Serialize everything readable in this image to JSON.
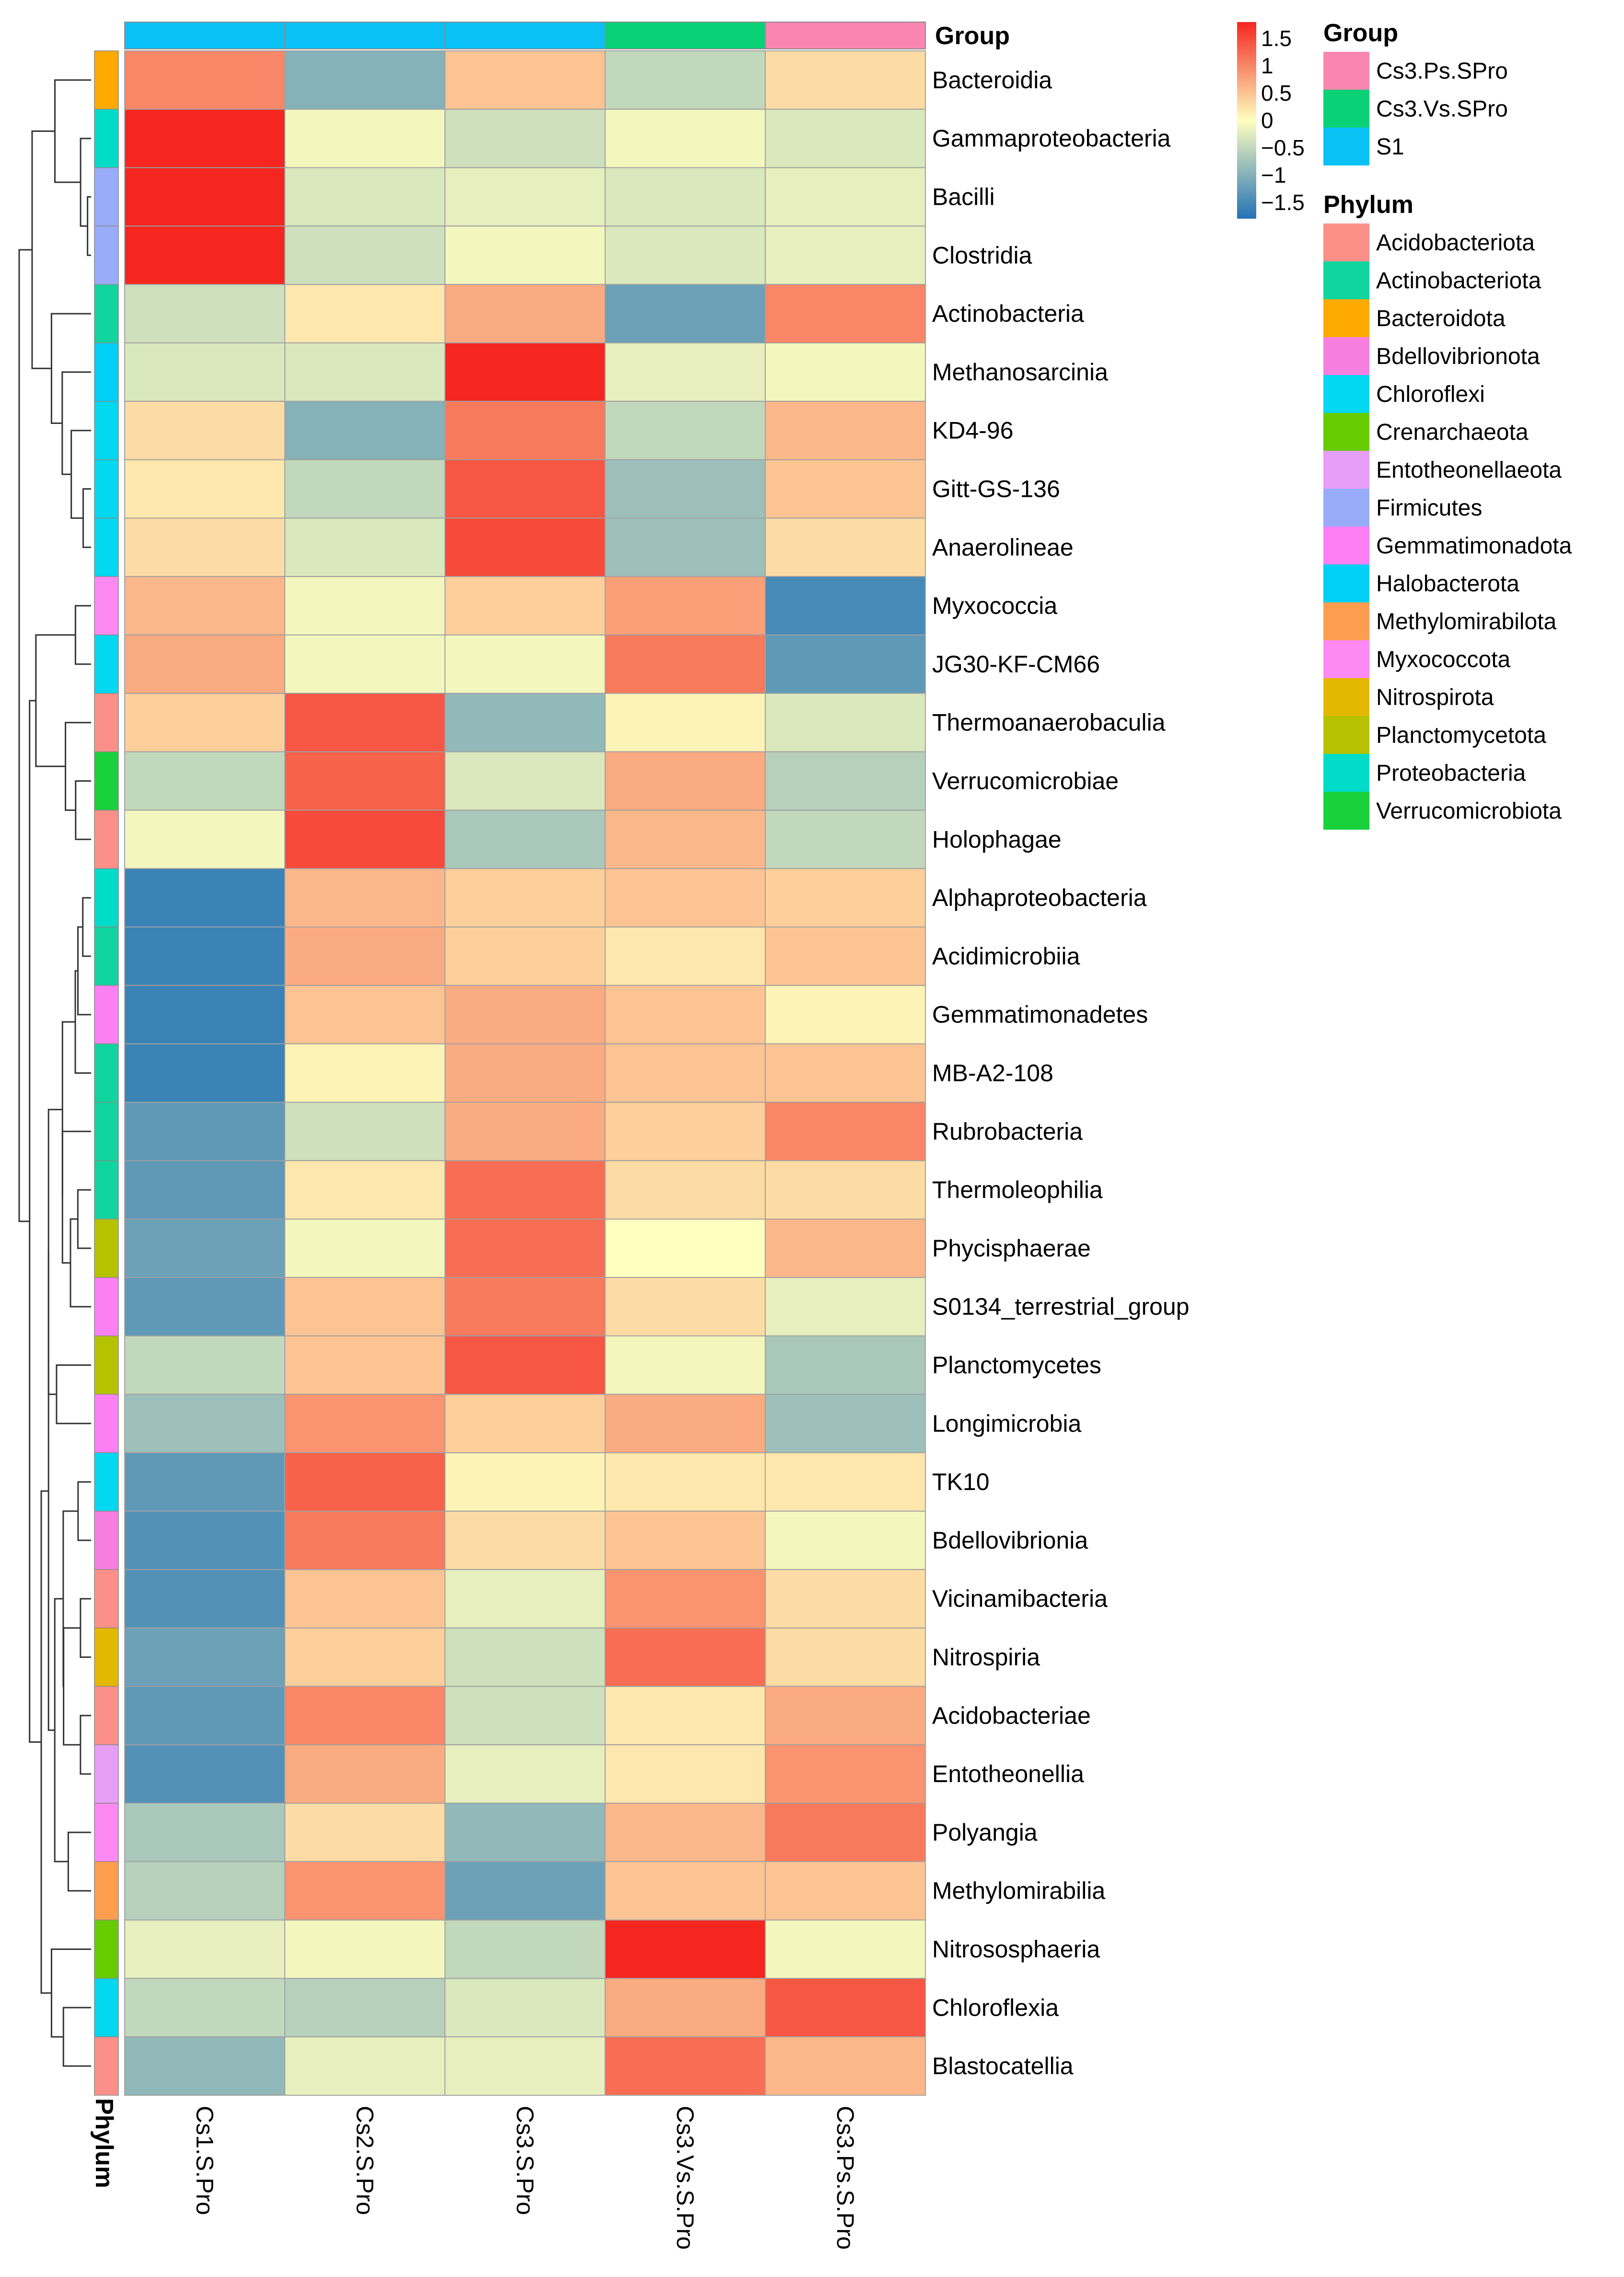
{
  "chart_data": {
    "type": "heatmap",
    "title": "",
    "columns": [
      "Cs1.S.Pro",
      "Cs2.S.Pro",
      "Cs3.S.Pro",
      "Cs3.Vs.S.Pro",
      "Cs3.Ps.S.Pro"
    ],
    "column_groups": [
      "S1",
      "S1",
      "S1",
      "Cs3.Vs.SPro",
      "Cs3.Ps.SPro"
    ],
    "column_annotation_title": "Group",
    "row_annotation_title": "Phylum",
    "rows": [
      {
        "name": "Bacteroidia",
        "phylum": "Bacteroidota",
        "values": [
          1.0,
          -1.0,
          0.5,
          -0.5,
          0.3
        ]
      },
      {
        "name": "Gammaproteobacteria",
        "phylum": "Proteobacteria",
        "values": [
          1.8,
          -0.1,
          -0.4,
          -0.1,
          -0.3
        ]
      },
      {
        "name": "Bacilli",
        "phylum": "Firmicutes",
        "values": [
          1.8,
          -0.3,
          -0.2,
          -0.3,
          -0.2
        ]
      },
      {
        "name": "Clostridia",
        "phylum": "Firmicutes",
        "values": [
          1.8,
          -0.4,
          -0.1,
          -0.3,
          -0.2
        ]
      },
      {
        "name": "Actinobacteria",
        "phylum": "Actinobacteriota",
        "values": [
          -0.4,
          0.2,
          0.7,
          -1.2,
          1.0
        ]
      },
      {
        "name": "Methanosarcinia",
        "phylum": "Halobacterota",
        "values": [
          -0.3,
          -0.3,
          1.8,
          -0.2,
          -0.1
        ]
      },
      {
        "name": "KD4-96",
        "phylum": "Chloroflexi",
        "values": [
          0.3,
          -1.0,
          1.1,
          -0.5,
          0.6
        ]
      },
      {
        "name": "Gitt-GS-136",
        "phylum": "Chloroflexi",
        "values": [
          0.2,
          -0.5,
          1.4,
          -0.8,
          0.5
        ]
      },
      {
        "name": "Anaerolineae",
        "phylum": "Chloroflexi",
        "values": [
          0.3,
          -0.3,
          1.5,
          -0.8,
          0.3
        ]
      },
      {
        "name": "Myxococcia",
        "phylum": "Myxococcota",
        "values": [
          0.6,
          -0.1,
          0.4,
          0.8,
          -1.5
        ]
      },
      {
        "name": "JG30-KF-CM66",
        "phylum": "Chloroflexi",
        "values": [
          0.7,
          -0.1,
          -0.1,
          1.1,
          -1.3
        ]
      },
      {
        "name": "Thermoanaerobaculia",
        "phylum": "Acidobacteriota",
        "values": [
          0.4,
          1.4,
          -0.9,
          0.1,
          -0.3
        ]
      },
      {
        "name": "Verrucomicrobiae",
        "phylum": "Verrucomicrobiota",
        "values": [
          -0.5,
          1.3,
          -0.3,
          0.7,
          -0.6
        ]
      },
      {
        "name": "Holophagae",
        "phylum": "Acidobacteriota",
        "values": [
          -0.1,
          1.5,
          -0.7,
          0.6,
          -0.5
        ]
      },
      {
        "name": "Alphaproteobacteria",
        "phylum": "Proteobacteria",
        "values": [
          -1.6,
          0.6,
          0.4,
          0.5,
          0.4
        ]
      },
      {
        "name": "Acidimicrobiia",
        "phylum": "Actinobacteriota",
        "values": [
          -1.6,
          0.7,
          0.4,
          0.2,
          0.5
        ]
      },
      {
        "name": "Gemmatimonadetes",
        "phylum": "Gemmatimonadota",
        "values": [
          -1.6,
          0.5,
          0.7,
          0.5,
          0.1
        ]
      },
      {
        "name": "MB-A2-108",
        "phylum": "Actinobacteriota",
        "values": [
          -1.6,
          0.1,
          0.7,
          0.5,
          0.5
        ]
      },
      {
        "name": "Rubrobacteria",
        "phylum": "Actinobacteriota",
        "values": [
          -1.3,
          -0.4,
          0.7,
          0.4,
          1.0
        ]
      },
      {
        "name": "Thermoleophilia",
        "phylum": "Actinobacteriota",
        "values": [
          -1.3,
          0.2,
          1.2,
          0.3,
          0.3
        ]
      },
      {
        "name": "Phycisphaerae",
        "phylum": "Planctomycetota",
        "values": [
          -1.2,
          -0.1,
          1.2,
          0.0,
          0.6
        ]
      },
      {
        "name": "S0134_terrestrial_group",
        "phylum": "Gemmatimonadota",
        "values": [
          -1.3,
          0.5,
          1.1,
          0.3,
          -0.2
        ]
      },
      {
        "name": "Planctomycetes",
        "phylum": "Planctomycetota",
        "values": [
          -0.5,
          0.5,
          1.4,
          -0.1,
          -0.7
        ]
      },
      {
        "name": "Longimicrobia",
        "phylum": "Gemmatimonadota",
        "values": [
          -0.8,
          0.9,
          0.4,
          0.7,
          -0.8
        ]
      },
      {
        "name": "TK10",
        "phylum": "Chloroflexi",
        "values": [
          -1.3,
          1.3,
          0.1,
          0.2,
          0.2
        ]
      },
      {
        "name": "Bdellovibrionia",
        "phylum": "Bdellovibrionota",
        "values": [
          -1.4,
          1.1,
          0.3,
          0.5,
          -0.1
        ]
      },
      {
        "name": "Vicinamibacteria",
        "phylum": "Acidobacteriota",
        "values": [
          -1.4,
          0.5,
          -0.2,
          0.9,
          0.3
        ]
      },
      {
        "name": "Nitrospiria",
        "phylum": "Nitrospirota",
        "values": [
          -1.2,
          0.4,
          -0.4,
          1.2,
          0.3
        ]
      },
      {
        "name": "Acidobacteriae",
        "phylum": "Acidobacteriota",
        "values": [
          -1.3,
          1.0,
          -0.4,
          0.2,
          0.7
        ]
      },
      {
        "name": "Entotheonellia",
        "phylum": "Entotheonellaeota",
        "values": [
          -1.4,
          0.7,
          -0.2,
          0.2,
          0.9
        ]
      },
      {
        "name": "Polyangia",
        "phylum": "Myxococcota",
        "values": [
          -0.7,
          0.3,
          -0.9,
          0.6,
          1.1
        ]
      },
      {
        "name": "Methylomirabilia",
        "phylum": "Methylomirabilota",
        "values": [
          -0.6,
          0.9,
          -1.2,
          0.5,
          0.5
        ]
      },
      {
        "name": "Nitrososphaeria",
        "phylum": "Crenarchaeota",
        "values": [
          -0.2,
          -0.1,
          -0.5,
          1.8,
          -0.1
        ]
      },
      {
        "name": "Chloroflexia",
        "phylum": "Chloroflexi",
        "values": [
          -0.5,
          -0.6,
          -0.3,
          0.7,
          1.4
        ]
      },
      {
        "name": "Blastocatellia",
        "phylum": "Acidobacteriota",
        "values": [
          -0.9,
          -0.2,
          -0.2,
          1.2,
          0.6
        ]
      }
    ],
    "colorbar": {
      "range": [
        -1.8,
        1.8
      ],
      "ticks": [
        {
          "value": 1.5,
          "label": "1.5"
        },
        {
          "value": 1,
          "label": "1"
        },
        {
          "value": 0.5,
          "label": "0.5"
        },
        {
          "value": 0,
          "label": "0"
        },
        {
          "value": -0.5,
          "label": "−0.5"
        },
        {
          "value": -1,
          "label": "−1"
        },
        {
          "value": -1.5,
          "label": "−1.5"
        }
      ],
      "colors": [
        "#2372b5",
        "#ffffbf",
        "#f4261f"
      ]
    },
    "group_legend": {
      "title": "Group",
      "items": [
        {
          "label": "Cs3.Ps.SPro",
          "color": "#fa86b0"
        },
        {
          "label": "Cs3.Vs.SPro",
          "color": "#0bd176"
        },
        {
          "label": "S1",
          "color": "#0ac1f6"
        }
      ]
    },
    "phylum_legend": {
      "title": "Phylum",
      "items": [
        {
          "label": "Acidobacteriota",
          "color": "#fc9088"
        },
        {
          "label": "Actinobacteriota",
          "color": "#10d59e"
        },
        {
          "label": "Bacteroidota",
          "color": "#ffaa00"
        },
        {
          "label": "Bdellovibrionota",
          "color": "#f67ede"
        },
        {
          "label": "Chloroflexi",
          "color": "#02d8f0"
        },
        {
          "label": "Crenarchaeota",
          "color": "#66cc00"
        },
        {
          "label": "Entotheonellaeota",
          "color": "#e79ef6"
        },
        {
          "label": "Firmicutes",
          "color": "#99acfa"
        },
        {
          "label": "Gemmatimonadota",
          "color": "#fc80f3"
        },
        {
          "label": "Halobacterota",
          "color": "#00cff6"
        },
        {
          "label": "Methylomirabilota",
          "color": "#fd9e4f"
        },
        {
          "label": "Myxococcota",
          "color": "#fd89f2"
        },
        {
          "label": "Nitrospirota",
          "color": "#e3b800"
        },
        {
          "label": "Planctomycetota",
          "color": "#b6c200"
        },
        {
          "label": "Proteobacteria",
          "color": "#00dcc7"
        },
        {
          "label": "Verrucomicrobiota",
          "color": "#19d23b"
        }
      ]
    }
  }
}
